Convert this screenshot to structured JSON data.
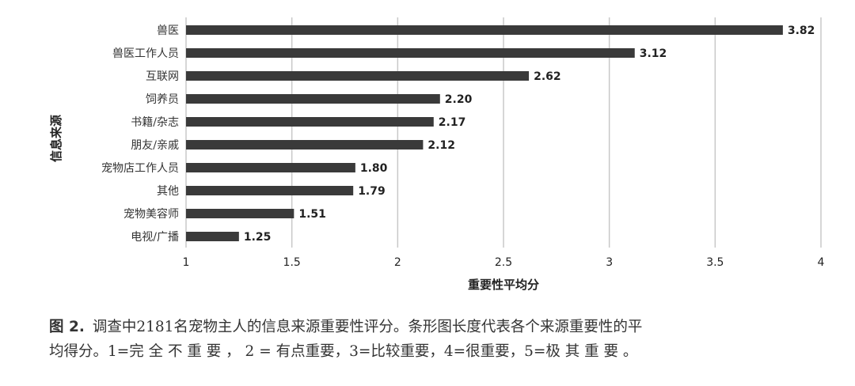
{
  "chart_data": {
    "type": "bar",
    "orientation": "horizontal",
    "categories": [
      "兽医",
      "兽医工作人员",
      "互联网",
      "饲养员",
      "书籍/杂志",
      "朋友/亲戚",
      "宠物店工作人员",
      "其他",
      "宠物美容师",
      "电视/广播"
    ],
    "values": [
      3.82,
      3.12,
      2.62,
      2.2,
      2.17,
      2.12,
      1.8,
      1.79,
      1.51,
      1.25
    ],
    "value_labels": [
      "3.82",
      "3.12",
      "2.62",
      "2.20",
      "2.17",
      "2.12",
      "1.80",
      "1.79",
      "1.51",
      "1.25"
    ],
    "xlim": [
      1,
      4
    ],
    "xticks": [
      "1",
      "1.5",
      "2",
      "2.5",
      "3",
      "3.5",
      "4"
    ],
    "xlabel": "重要性平均分",
    "ylabel": "信息来源",
    "grid": "vertical",
    "bar_color": "#3a3a3a",
    "grid_color": "#c8c8c8"
  },
  "caption": {
    "tag": "图 2.",
    "line1": "调查中2181名宠物主人的信息来源重要性评分。条形图长度代表各个来源重要性的平",
    "line2": "均得分。1=完 全 不 重 要 ， 2 = 有点重要，3=比较重要，4=很重要，5=极 其 重 要 。"
  }
}
